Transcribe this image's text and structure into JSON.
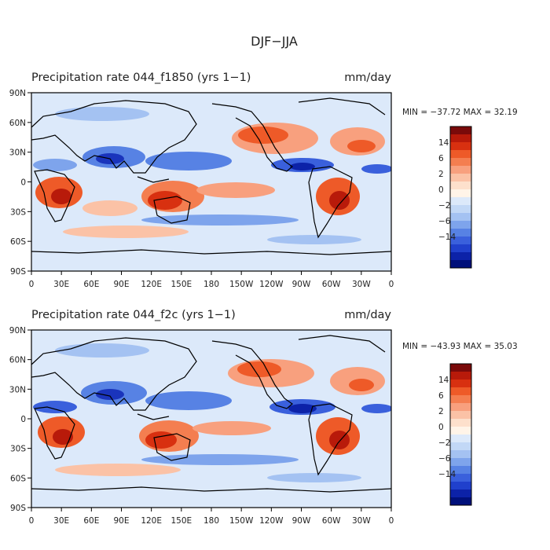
{
  "figure_title": "DJF−JJA",
  "panels": [
    {
      "title": "Precipitation rate  044_f1850 (yrs 1−1)",
      "units": "mm/day",
      "stats": "MIN = −37.72 MAX =  32.19"
    },
    {
      "title": "Precipitation rate   044_f2c (yrs 1−1)",
      "units": "mm/day",
      "stats": "MIN = −43.93 MAX =  35.03"
    }
  ],
  "lat_ticks": [
    "90N",
    "60N",
    "30N",
    "0",
    "30S",
    "60S",
    "90S"
  ],
  "lon_ticks": [
    "0",
    "30E",
    "60E",
    "90E",
    "120E",
    "150E",
    "180",
    "150W",
    "120W",
    "90W",
    "60W",
    "30W",
    "0"
  ],
  "colorbar": {
    "labels": [
      "14",
      "6",
      "2",
      "0",
      "−2",
      "−6",
      "−14"
    ],
    "colors": [
      "#7a0a0a",
      "#b81a0a",
      "#d83010",
      "#ee5a28",
      "#f47e50",
      "#f8a07e",
      "#fbc2a6",
      "#fde0cc",
      "#fff4e8",
      "#dce9fa",
      "#c2d8f6",
      "#a4c2f2",
      "#7ea4ec",
      "#5782e4",
      "#3a60dc",
      "#2040cc",
      "#0c22a8",
      "#00107a"
    ]
  },
  "map_fill_colors": {
    "ocean_base": "#dce9fa",
    "wet_strong": "#d83010",
    "wet_mod": "#f47e50",
    "wet_light": "#fbc2a6",
    "dry_light": "#a4c2f2",
    "dry_mod": "#5782e4",
    "dry_strong": "#1a34bc"
  }
}
